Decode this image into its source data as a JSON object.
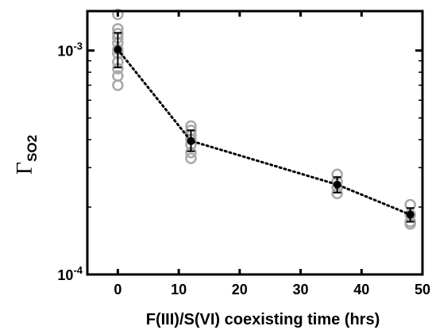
{
  "chart_data": {
    "type": "scatter",
    "title": "",
    "xlabel": "F(III)/S(VI) coexisting time (hrs)",
    "ylabel": {
      "main": "Γ",
      "sub": "SO2"
    },
    "xlim": [
      -5,
      50
    ],
    "ylim": [
      0.0001,
      0.0015
    ],
    "yscale": "log",
    "grid": false,
    "xticks": [
      0,
      10,
      20,
      30,
      40,
      50
    ],
    "xtick_labels": [
      "0",
      "10",
      "20",
      "30",
      "40",
      "50"
    ],
    "yticks": [
      {
        "value": 0.001,
        "base": "10",
        "exp": "-3"
      },
      {
        "value": 0.0001,
        "base": "10",
        "exp": "-4"
      }
    ],
    "series": [
      {
        "role": "replicates",
        "marker": "open-circle",
        "color": "#a8a8a8",
        "points": [
          {
            "x": 0,
            "y": 0.00145
          },
          {
            "x": 0,
            "y": 0.00125
          },
          {
            "x": 0,
            "y": 0.00119
          },
          {
            "x": 0,
            "y": 0.00114
          },
          {
            "x": 0,
            "y": 0.00108
          },
          {
            "x": 0,
            "y": 0.00101
          },
          {
            "x": 0,
            "y": 0.00097
          },
          {
            "x": 0,
            "y": 0.00089
          },
          {
            "x": 0,
            "y": 0.00083
          },
          {
            "x": 0,
            "y": 0.00077
          },
          {
            "x": 0,
            "y": 0.0007
          },
          {
            "x": 12,
            "y": 0.00046
          },
          {
            "x": 12,
            "y": 0.00044
          },
          {
            "x": 12,
            "y": 0.00042
          },
          {
            "x": 12,
            "y": 0.0004
          },
          {
            "x": 12,
            "y": 0.00038
          },
          {
            "x": 12,
            "y": 0.00035
          },
          {
            "x": 12,
            "y": 0.00033
          },
          {
            "x": 36,
            "y": 0.00028
          },
          {
            "x": 36,
            "y": 0.00026
          },
          {
            "x": 36,
            "y": 0.000245
          },
          {
            "x": 36,
            "y": 0.00023
          },
          {
            "x": 48,
            "y": 0.000205
          },
          {
            "x": 48,
            "y": 0.000185
          },
          {
            "x": 48,
            "y": 0.000172
          },
          {
            "x": 48,
            "y": 0.000168
          }
        ]
      },
      {
        "role": "mean",
        "marker": "filled-circle",
        "color": "#000000",
        "line": "dotted",
        "points": [
          {
            "x": 0,
            "y": 0.00101,
            "err_low": 0.00084,
            "err_high": 0.0012
          },
          {
            "x": 12,
            "y": 0.000395,
            "err_low": 0.000355,
            "err_high": 0.00044
          },
          {
            "x": 36,
            "y": 0.000252,
            "err_low": 0.000232,
            "err_high": 0.000272
          },
          {
            "x": 48,
            "y": 0.000185,
            "err_low": 0.000172,
            "err_high": 0.000198
          }
        ]
      }
    ]
  }
}
